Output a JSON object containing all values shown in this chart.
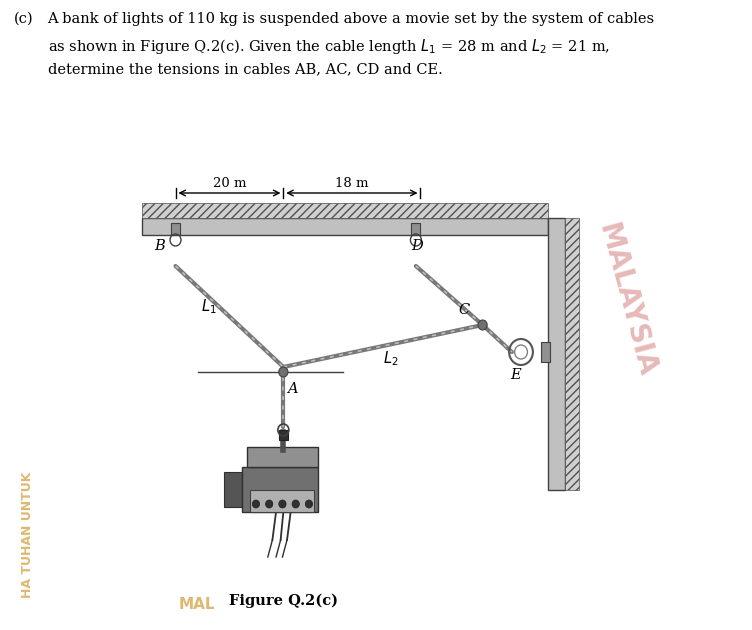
{
  "line1_prefix": "(c)",
  "line1": "A bank of lights of 110 kg is suspended above a movie set by the system of cables",
  "line2": "as shown in Figure Q.2(c). Given the cable length $L_1$ = 28 m and $L_2$ = 21 m,",
  "line3": "determine the tensions in cables AB, AC, CD and CE.",
  "figure_caption": "Figure Q.2(c)",
  "dim_20m": "20 m",
  "dim_18m": "18 m",
  "label_B": "B",
  "label_D": "D",
  "label_C": "C",
  "label_E": "E",
  "label_A": "A",
  "label_L1": "$L_1$",
  "label_L2": "$L_2$",
  "bg_color": "#ffffff",
  "ceiling_color": "#c0c0c0",
  "rope_color": "#888888",
  "watermark_color_malaysia": "#d48080",
  "watermark_color_tuhan": "#d4a040"
}
